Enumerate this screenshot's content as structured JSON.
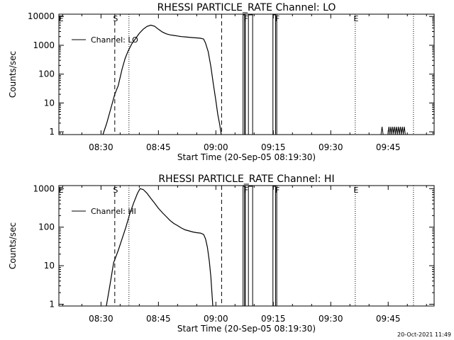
{
  "footer_timestamp": "20-Oct-2021 11:49",
  "chart_data": [
    {
      "type": "line",
      "title": "RHESSI  PARTICLE_RATE  Channel: LO",
      "xlabel": "Start Time (20-Sep-05 08:19:30)",
      "ylabel": "Counts/sec",
      "yscale": "log",
      "ylim": [
        0.8,
        12000
      ],
      "xlim_minutes": [
        0,
        98
      ],
      "x_ticks": [
        {
          "t": 11,
          "label": "08:30"
        },
        {
          "t": 26,
          "label": "08:45"
        },
        {
          "t": 41,
          "label": "09:00"
        },
        {
          "t": 56,
          "label": "09:15"
        },
        {
          "t": 71,
          "label": "09:30"
        },
        {
          "t": 86,
          "label": "09:45"
        }
      ],
      "y_ticks": [
        {
          "v": 1,
          "label": "1"
        },
        {
          "v": 10,
          "label": "10"
        },
        {
          "v": 100,
          "label": "100"
        },
        {
          "v": 1000,
          "label": "1000"
        },
        {
          "v": 10000,
          "label": "10000"
        }
      ],
      "legend": {
        "label": "Channel: LO",
        "position": "top-left"
      },
      "markers": [
        {
          "t": 0.4,
          "label": "E",
          "style": "none"
        },
        {
          "t": 14.6,
          "label": "S",
          "style": "dashed"
        },
        {
          "t": 18.3,
          "label": "",
          "style": "dotted"
        },
        {
          "t": 42.5,
          "label": "",
          "style": "dashed"
        },
        {
          "t": 48.7,
          "label": "F",
          "style": "solid"
        },
        {
          "t": 56.9,
          "label": "F",
          "style": "solid"
        },
        {
          "t": 77.4,
          "label": "E",
          "style": "dotted"
        },
        {
          "t": 92.6,
          "label": "",
          "style": "dotted"
        }
      ],
      "series": [
        {
          "name": "Channel: LO",
          "points": [
            [
              11.5,
              0.8
            ],
            [
              12.5,
              2
            ],
            [
              13.5,
              6
            ],
            [
              14.6,
              20
            ],
            [
              15.5,
              40
            ],
            [
              16.5,
              150
            ],
            [
              17.3,
              350
            ],
            [
              18,
              600
            ],
            [
              19,
              1100
            ],
            [
              20,
              1700
            ],
            [
              21,
              2600
            ],
            [
              22,
              3600
            ],
            [
              23,
              4500
            ],
            [
              24,
              5000
            ],
            [
              25,
              4600
            ],
            [
              26,
              3600
            ],
            [
              27,
              2900
            ],
            [
              28,
              2500
            ],
            [
              29,
              2300
            ],
            [
              30,
              2200
            ],
            [
              31,
              2100
            ],
            [
              32,
              2000
            ],
            [
              33,
              1950
            ],
            [
              34,
              1900
            ],
            [
              35,
              1850
            ],
            [
              36,
              1800
            ],
            [
              37,
              1750
            ],
            [
              37.8,
              1650
            ],
            [
              38.3,
              1200
            ],
            [
              39,
              600
            ],
            [
              39.7,
              180
            ],
            [
              40.3,
              50
            ],
            [
              41,
              12
            ],
            [
              41.5,
              4
            ],
            [
              42,
              1.8
            ],
            [
              42.4,
              0.8
            ]
          ],
          "spikes": [
            [
              84.4,
              1.5
            ],
            [
              86.2,
              1.5
            ],
            [
              86.7,
              1.5
            ],
            [
              87.2,
              1.5
            ],
            [
              87.7,
              1.5
            ],
            [
              88.2,
              1.5
            ],
            [
              88.7,
              1.5
            ],
            [
              89.2,
              1.5
            ],
            [
              89.7,
              1.5
            ],
            [
              90.2,
              1.5
            ]
          ]
        }
      ],
      "gaps": [
        [
          48.1,
          48.5
        ],
        [
          49.5,
          50.6
        ],
        [
          55.9,
          56.6
        ]
      ]
    },
    {
      "type": "line",
      "title": "RHESSI  PARTICLE_RATE  Channel: HI",
      "xlabel": "Start Time (20-Sep-05 08:19:30)",
      "ylabel": "Counts/sec",
      "yscale": "log",
      "ylim": [
        0.9,
        1200
      ],
      "xlim_minutes": [
        0,
        98
      ],
      "x_ticks": [
        {
          "t": 11,
          "label": "08:30"
        },
        {
          "t": 26,
          "label": "08:45"
        },
        {
          "t": 41,
          "label": "09:00"
        },
        {
          "t": 56,
          "label": "09:15"
        },
        {
          "t": 71,
          "label": "09:30"
        },
        {
          "t": 86,
          "label": "09:45"
        }
      ],
      "y_ticks": [
        {
          "v": 1,
          "label": "1"
        },
        {
          "v": 10,
          "label": "10"
        },
        {
          "v": 100,
          "label": "100"
        },
        {
          "v": 1000,
          "label": "1000"
        }
      ],
      "legend": {
        "label": "Channel: HI",
        "position": "top-left"
      },
      "markers": [
        {
          "t": 0.4,
          "label": "E",
          "style": "none"
        },
        {
          "t": 14.6,
          "label": "S",
          "style": "dashed"
        },
        {
          "t": 18.3,
          "label": "",
          "style": "dotted"
        },
        {
          "t": 42.5,
          "label": "",
          "style": "dashed"
        },
        {
          "t": 48.7,
          "label": "F",
          "style": "solid"
        },
        {
          "t": 56.9,
          "label": "F",
          "style": "solid"
        },
        {
          "t": 77.4,
          "label": "E",
          "style": "dotted"
        },
        {
          "t": 92.6,
          "label": "",
          "style": "dotted"
        }
      ],
      "series": [
        {
          "name": "Channel: HI",
          "points": [
            [
              12.4,
              0.9
            ],
            [
              13.3,
              3
            ],
            [
              14.3,
              12
            ],
            [
              15.5,
              25
            ],
            [
              16.5,
              50
            ],
            [
              17.5,
              100
            ],
            [
              18.5,
              220
            ],
            [
              19.5,
              420
            ],
            [
              20.5,
              750
            ],
            [
              21.2,
              1000
            ],
            [
              22,
              950
            ],
            [
              23,
              760
            ],
            [
              24,
              560
            ],
            [
              25,
              420
            ],
            [
              26,
              310
            ],
            [
              27,
              240
            ],
            [
              28,
              190
            ],
            [
              29,
              150
            ],
            [
              30,
              125
            ],
            [
              31,
              110
            ],
            [
              32,
              95
            ],
            [
              33,
              85
            ],
            [
              34,
              80
            ],
            [
              35,
              75
            ],
            [
              36,
              72
            ],
            [
              37,
              70
            ],
            [
              37.8,
              65
            ],
            [
              38.3,
              50
            ],
            [
              38.8,
              30
            ],
            [
              39.3,
              13
            ],
            [
              39.7,
              5
            ],
            [
              40,
              1.8
            ],
            [
              40.2,
              0.9
            ]
          ],
          "spikes": []
        }
      ],
      "gaps": [
        [
          48.1,
          48.5
        ],
        [
          49.5,
          50.6
        ],
        [
          55.9,
          56.6
        ]
      ]
    }
  ]
}
